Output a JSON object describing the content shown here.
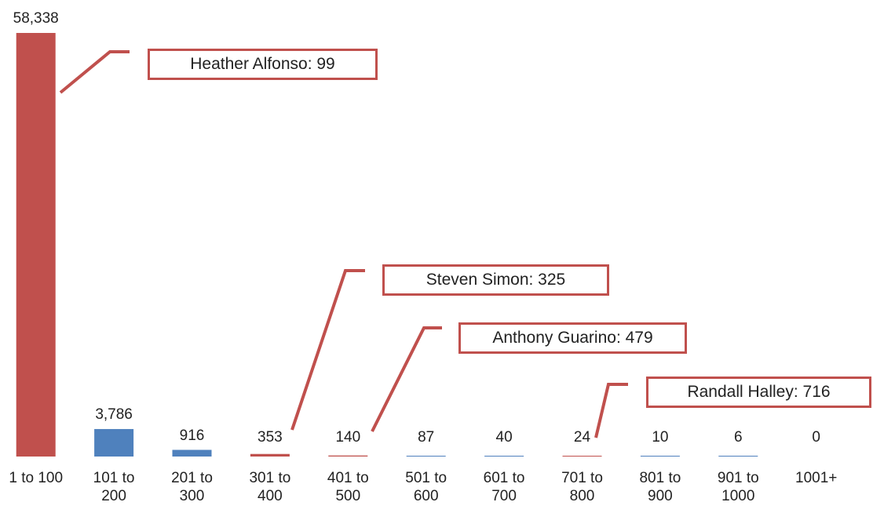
{
  "chart_data": {
    "type": "bar",
    "categories": [
      "1 to 100",
      "101 to 200",
      "201 to 300",
      "301 to 400",
      "401 to 500",
      "501 to 600",
      "601 to 700",
      "701 to 800",
      "801 to 900",
      "901 to 1000",
      "1001+"
    ],
    "values": [
      58338,
      3786,
      916,
      353,
      140,
      87,
      40,
      24,
      10,
      6,
      0
    ],
    "value_labels": [
      "58,338",
      "3,786",
      "916",
      "353",
      "140",
      "87",
      "40",
      "24",
      "10",
      "6",
      "0"
    ],
    "colors": [
      "#c0504d",
      "#4f81bd",
      "#4f81bd",
      "#c0504d",
      "#c0504d",
      "#4f81bd",
      "#4f81bd",
      "#c0504d",
      "#4f81bd",
      "#4f81bd",
      "#4f81bd"
    ],
    "annotations": [
      {
        "text": "Heather Alfonso: 99",
        "category": 0
      },
      {
        "text": "Steven Simon: 325",
        "category": 3
      },
      {
        "text": "Anthony Guarino: 479",
        "category": 4
      },
      {
        "text": "Randall Halley: 716",
        "category": 7
      }
    ]
  }
}
